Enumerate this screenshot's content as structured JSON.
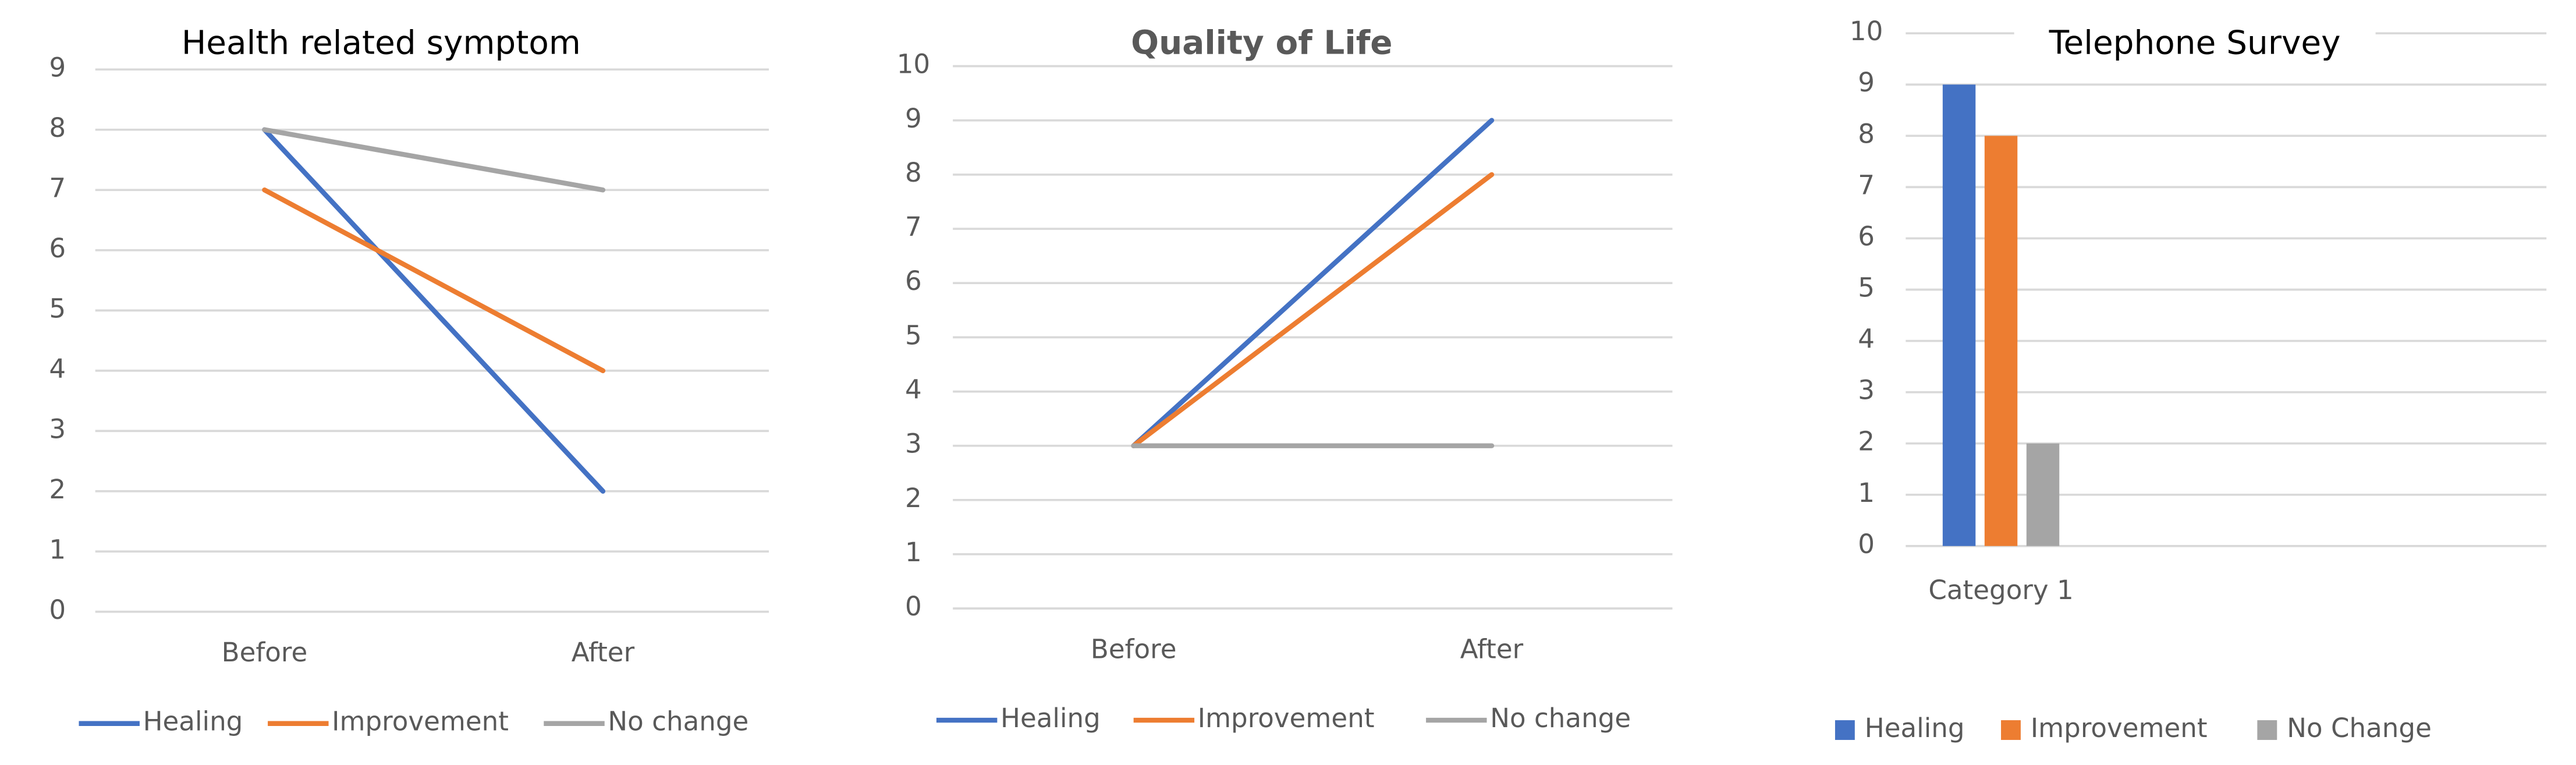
{
  "chart_data": [
    {
      "type": "line",
      "title": "Health related symptom",
      "categories": [
        "Before",
        "After"
      ],
      "series": [
        {
          "name": "Healing",
          "color": "#4472c4",
          "values": [
            8,
            2
          ]
        },
        {
          "name": "Improvement",
          "color": "#ed7d31",
          "values": [
            7,
            4
          ]
        },
        {
          "name": "No change",
          "color": "#a5a5a5",
          "values": [
            8,
            7
          ]
        }
      ],
      "ylim": [
        0,
        9
      ],
      "yticks": [
        0,
        1,
        2,
        3,
        4,
        5,
        6,
        7,
        8,
        9
      ],
      "grid": true,
      "legend": "bottom"
    },
    {
      "type": "line",
      "title": "Quality of Life",
      "categories": [
        "Before",
        "After"
      ],
      "series": [
        {
          "name": "Healing",
          "color": "#4472c4",
          "values": [
            3,
            9
          ]
        },
        {
          "name": "Improvement",
          "color": "#ed7d31",
          "values": [
            3,
            8
          ]
        },
        {
          "name": "No change",
          "color": "#a5a5a5",
          "values": [
            3,
            3
          ]
        }
      ],
      "ylim": [
        0,
        10
      ],
      "yticks": [
        0,
        1,
        2,
        3,
        4,
        5,
        6,
        7,
        8,
        9,
        10
      ],
      "grid": true,
      "legend": "bottom"
    },
    {
      "type": "bar",
      "title": "Telephone Survey",
      "categories": [
        "Category 1"
      ],
      "series": [
        {
          "name": "Healing",
          "color": "#4472c4",
          "values": [
            9
          ]
        },
        {
          "name": "Improvement",
          "color": "#ed7d31",
          "values": [
            8
          ]
        },
        {
          "name": "No Change",
          "color": "#a5a5a5",
          "values": [
            2
          ]
        }
      ],
      "ylim": [
        0,
        10
      ],
      "yticks": [
        0,
        1,
        2,
        3,
        4,
        5,
        6,
        7,
        8,
        9,
        10
      ],
      "grid": true,
      "legend": "bottom"
    }
  ]
}
